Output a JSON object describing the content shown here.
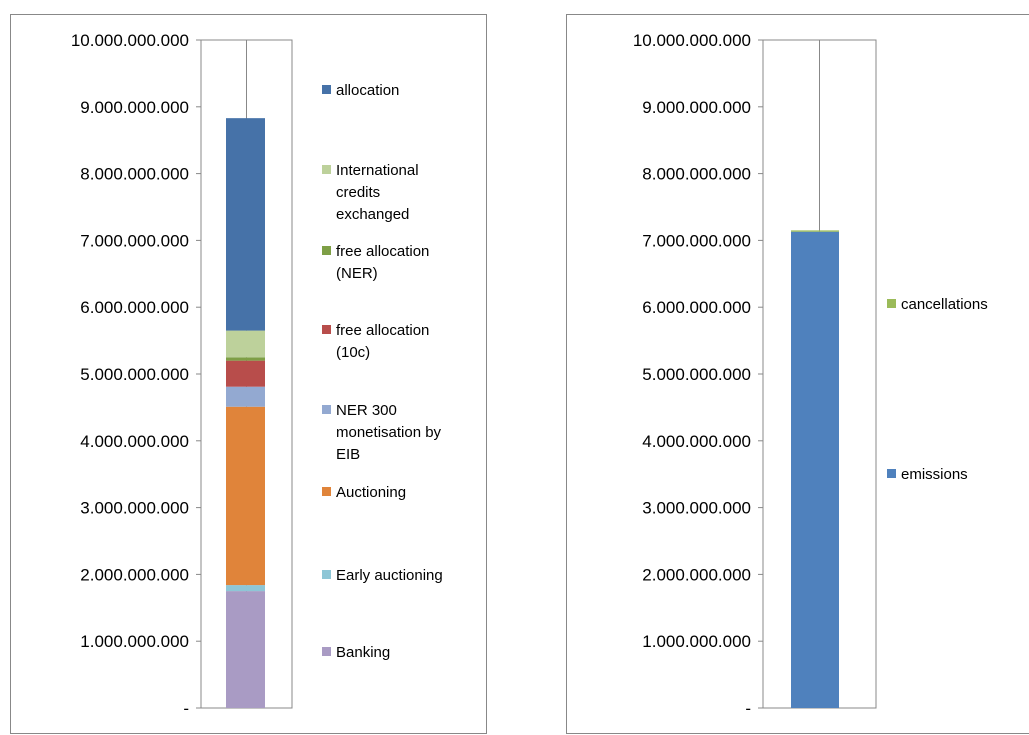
{
  "chart_data": [
    {
      "type": "bar",
      "stacked": true,
      "categories": [
        ""
      ],
      "ylim": [
        0,
        10000000000
      ],
      "yticks": [
        "-",
        "1.000.000.000",
        "2.000.000.000",
        "3.000.000.000",
        "4.000.000.000",
        "5.000.000.000",
        "6.000.000.000",
        "7.000.000.000",
        "8.000.000.000",
        "9.000.000.000",
        "10.000.000.000"
      ],
      "grid": true,
      "legend_position": "right",
      "series": [
        {
          "name": "Banking",
          "values": [
            1750000000
          ],
          "color": "#A99BC4"
        },
        {
          "name": "Early auctioning",
          "values": [
            90000000
          ],
          "color": "#8EC6D6"
        },
        {
          "name": "Auctioning",
          "values": [
            2670000000
          ],
          "color": "#E0843A"
        },
        {
          "name": "NER 300 monetisation by EIB",
          "values": [
            300000000
          ],
          "color": "#93A9D1"
        },
        {
          "name": "free allocation (10c)",
          "values": [
            390000000
          ],
          "color": "#B84D4B"
        },
        {
          "name": "free allocation (NER)",
          "values": [
            50000000
          ],
          "color": "#7E9F46"
        },
        {
          "name": "International credits exchanged",
          "values": [
            400000000
          ],
          "color": "#BDD19B"
        },
        {
          "name": "allocation",
          "values": [
            3180000000
          ],
          "color": "#4672A8"
        }
      ],
      "legend_lines": [
        [
          "allocation"
        ],
        [
          "International",
          "credits",
          "exchanged"
        ],
        [
          "free allocation",
          "(NER)"
        ],
        [
          "free allocation",
          "(10c)"
        ],
        [
          "NER 300",
          "monetisation by",
          "EIB"
        ],
        [
          "Auctioning"
        ],
        [
          "Early auctioning"
        ],
        [
          "Banking"
        ]
      ]
    },
    {
      "type": "bar",
      "stacked": true,
      "categories": [
        ""
      ],
      "ylim": [
        0,
        10000000000
      ],
      "yticks": [
        "-",
        "1.000.000.000",
        "2.000.000.000",
        "3.000.000.000",
        "4.000.000.000",
        "5.000.000.000",
        "6.000.000.000",
        "7.000.000.000",
        "8.000.000.000",
        "9.000.000.000",
        "10.000.000.000"
      ],
      "grid": true,
      "legend_position": "right",
      "series": [
        {
          "name": "emissions",
          "values": [
            7130000000
          ],
          "color": "#4F81BD"
        },
        {
          "name": "cancellations",
          "values": [
            20000000
          ],
          "color": "#9BBB59"
        }
      ],
      "legend_lines": [
        [
          "cancellations"
        ],
        [
          "emissions"
        ]
      ]
    }
  ]
}
